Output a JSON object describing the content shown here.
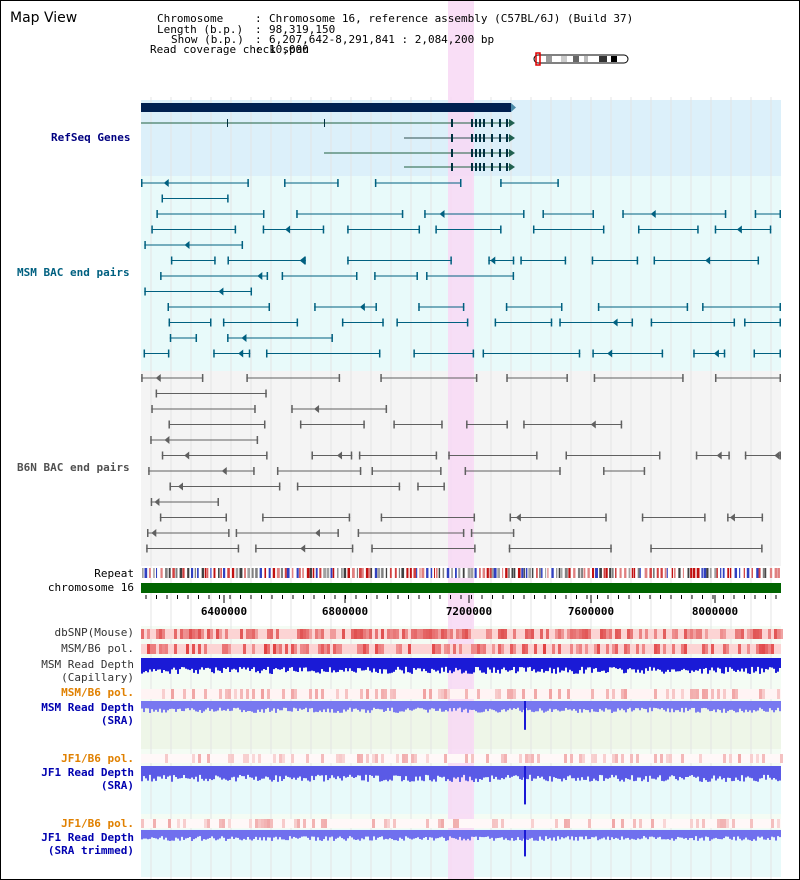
{
  "view_title": "Map View",
  "header": {
    "chromosome_key": "Chromosome",
    "chromosome_value": "Chromosome 16, reference assembly (C57BL/6J) (Build 37)",
    "length_key": "Length (b.p.)",
    "length_value": "98,319,150",
    "show_key": "Show (b.p.)",
    "show_value": "6,207,642-8,291,841 : 2,084,200 bp",
    "span_key": "Read coverage check span",
    "span_value": "10,000"
  },
  "tracks": {
    "refseq": {
      "label": "RefSeq Genes",
      "color": "#000080",
      "bg": "#dcf0fa"
    },
    "msm_bac": {
      "label": "MSM BAC end pairs",
      "color": "#006080",
      "bg": "#e8fafa"
    },
    "b6n_bac": {
      "label": "B6N BAC end pairs",
      "color": "#606060",
      "bg": "#f4f4f4"
    },
    "repeat": {
      "label": "Repeat"
    },
    "chromosome": {
      "label": "chromosome 16",
      "color": "#006400"
    },
    "dbsnp": {
      "label": "dbSNP(Mouse)"
    },
    "msm_b6_pol_1": {
      "label": "MSM/B6 pol."
    },
    "msm_read_depth_cap": {
      "line1": "MSM Read Depth",
      "line2": "(Capillary)"
    },
    "msm_b6_pol_2": {
      "label": "MSM/B6 pol."
    },
    "msm_read_depth_sra": {
      "line1": "MSM Read Depth",
      "line2": "(SRA)"
    },
    "jf1_b6_pol_1": {
      "label": "JF1/B6 pol."
    },
    "jf1_read_depth_sra": {
      "line1": "JF1 Read Depth",
      "line2": "(SRA)"
    },
    "jf1_b6_pol_2": {
      "label": "JF1/B6 pol."
    },
    "jf1_read_depth_trimmed": {
      "line1": "JF1 Read Depth",
      "line2": "(SRA trimmed)"
    }
  },
  "axis": {
    "ticks": [
      "6400000",
      "6800000",
      "7200000",
      "7600000",
      "8000000"
    ]
  },
  "colors": {
    "highlight": "#f8d8f4",
    "depth_blue": "#1a1ad6",
    "depth_light_blue": "#7878f0",
    "pol_orange": "#e08000"
  }
}
